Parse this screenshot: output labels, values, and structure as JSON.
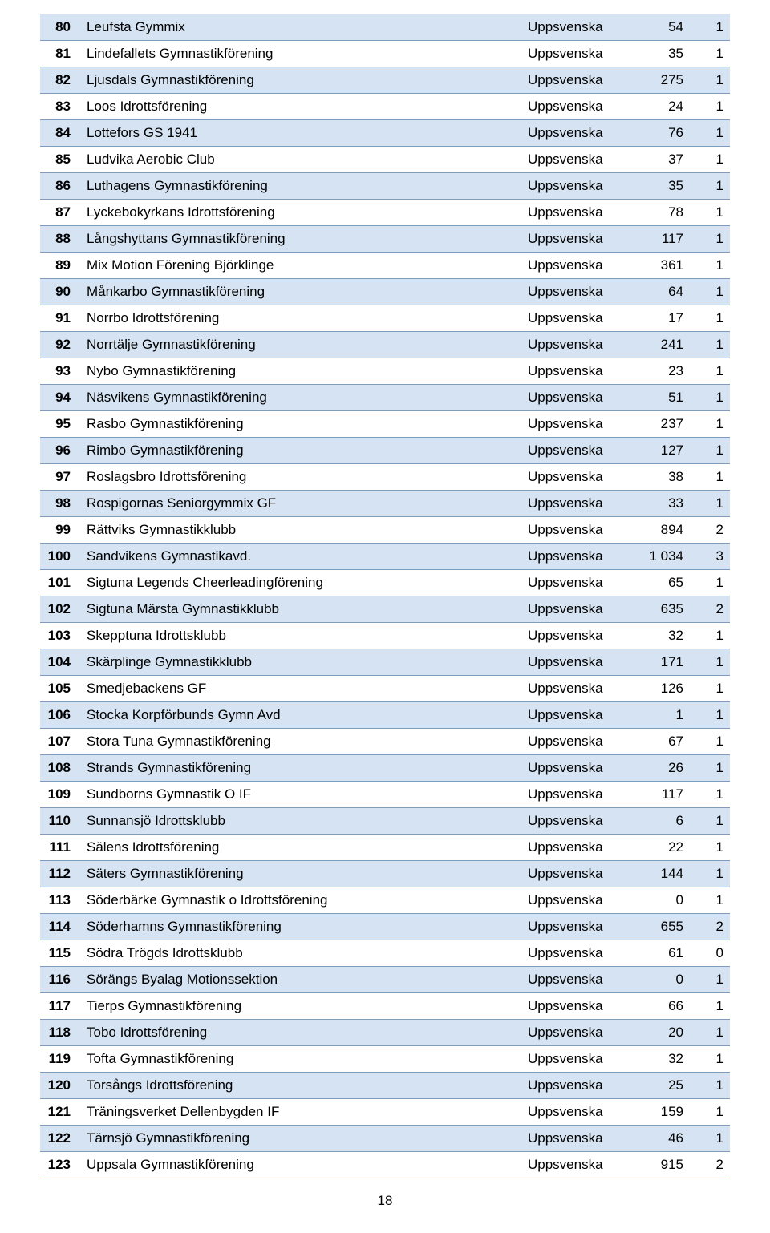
{
  "table": {
    "rows": [
      {
        "num": "80",
        "name": "Leufsta Gymmix",
        "region": "Uppsvenska",
        "v1": "54",
        "v2": "1",
        "shaded": true
      },
      {
        "num": "81",
        "name": "Lindefallets Gymnastikförening",
        "region": "Uppsvenska",
        "v1": "35",
        "v2": "1",
        "shaded": false
      },
      {
        "num": "82",
        "name": "Ljusdals Gymnastikförening",
        "region": "Uppsvenska",
        "v1": "275",
        "v2": "1",
        "shaded": true
      },
      {
        "num": "83",
        "name": "Loos Idrottsförening",
        "region": "Uppsvenska",
        "v1": "24",
        "v2": "1",
        "shaded": false
      },
      {
        "num": "84",
        "name": "Lottefors GS 1941",
        "region": "Uppsvenska",
        "v1": "76",
        "v2": "1",
        "shaded": true
      },
      {
        "num": "85",
        "name": "Ludvika Aerobic Club",
        "region": "Uppsvenska",
        "v1": "37",
        "v2": "1",
        "shaded": false
      },
      {
        "num": "86",
        "name": "Luthagens Gymnastikförening",
        "region": "Uppsvenska",
        "v1": "35",
        "v2": "1",
        "shaded": true
      },
      {
        "num": "87",
        "name": "Lyckebokyrkans Idrottsförening",
        "region": "Uppsvenska",
        "v1": "78",
        "v2": "1",
        "shaded": false
      },
      {
        "num": "88",
        "name": "Långshyttans Gymnastikförening",
        "region": "Uppsvenska",
        "v1": "117",
        "v2": "1",
        "shaded": true
      },
      {
        "num": "89",
        "name": "Mix Motion Förening Björklinge",
        "region": "Uppsvenska",
        "v1": "361",
        "v2": "1",
        "shaded": false
      },
      {
        "num": "90",
        "name": "Månkarbo Gymnastikförening",
        "region": "Uppsvenska",
        "v1": "64",
        "v2": "1",
        "shaded": true
      },
      {
        "num": "91",
        "name": "Norrbo Idrottsförening",
        "region": "Uppsvenska",
        "v1": "17",
        "v2": "1",
        "shaded": false
      },
      {
        "num": "92",
        "name": "Norrtälje Gymnastikförening",
        "region": "Uppsvenska",
        "v1": "241",
        "v2": "1",
        "shaded": true
      },
      {
        "num": "93",
        "name": "Nybo Gymnastikförening",
        "region": "Uppsvenska",
        "v1": "23",
        "v2": "1",
        "shaded": false
      },
      {
        "num": "94",
        "name": "Näsvikens Gymnastikförening",
        "region": "Uppsvenska",
        "v1": "51",
        "v2": "1",
        "shaded": true
      },
      {
        "num": "95",
        "name": "Rasbo Gymnastikförening",
        "region": "Uppsvenska",
        "v1": "237",
        "v2": "1",
        "shaded": false
      },
      {
        "num": "96",
        "name": "Rimbo Gymnastikförening",
        "region": "Uppsvenska",
        "v1": "127",
        "v2": "1",
        "shaded": true
      },
      {
        "num": "97",
        "name": "Roslagsbro Idrottsförening",
        "region": "Uppsvenska",
        "v1": "38",
        "v2": "1",
        "shaded": false
      },
      {
        "num": "98",
        "name": "Rospigornas Seniorgymmix GF",
        "region": "Uppsvenska",
        "v1": "33",
        "v2": "1",
        "shaded": true
      },
      {
        "num": "99",
        "name": "Rättviks Gymnastikklubb",
        "region": "Uppsvenska",
        "v1": "894",
        "v2": "2",
        "shaded": false
      },
      {
        "num": "100",
        "name": "Sandvikens Gymnastikavd.",
        "region": "Uppsvenska",
        "v1": "1 034",
        "v2": "3",
        "shaded": true
      },
      {
        "num": "101",
        "name": "Sigtuna Legends Cheerleadingförening",
        "region": "Uppsvenska",
        "v1": "65",
        "v2": "1",
        "shaded": false
      },
      {
        "num": "102",
        "name": "Sigtuna Märsta Gymnastikklubb",
        "region": "Uppsvenska",
        "v1": "635",
        "v2": "2",
        "shaded": true
      },
      {
        "num": "103",
        "name": "Skepptuna Idrottsklubb",
        "region": "Uppsvenska",
        "v1": "32",
        "v2": "1",
        "shaded": false
      },
      {
        "num": "104",
        "name": "Skärplinge Gymnastikklubb",
        "region": "Uppsvenska",
        "v1": "171",
        "v2": "1",
        "shaded": true
      },
      {
        "num": "105",
        "name": "Smedjebackens GF",
        "region": "Uppsvenska",
        "v1": "126",
        "v2": "1",
        "shaded": false
      },
      {
        "num": "106",
        "name": "Stocka Korpförbunds Gymn Avd",
        "region": "Uppsvenska",
        "v1": "1",
        "v2": "1",
        "shaded": true
      },
      {
        "num": "107",
        "name": "Stora Tuna Gymnastikförening",
        "region": "Uppsvenska",
        "v1": "67",
        "v2": "1",
        "shaded": false
      },
      {
        "num": "108",
        "name": "Strands Gymnastikförening",
        "region": "Uppsvenska",
        "v1": "26",
        "v2": "1",
        "shaded": true
      },
      {
        "num": "109",
        "name": "Sundborns Gymnastik O IF",
        "region": "Uppsvenska",
        "v1": "117",
        "v2": "1",
        "shaded": false
      },
      {
        "num": "110",
        "name": "Sunnansjö Idrottsklubb",
        "region": "Uppsvenska",
        "v1": "6",
        "v2": "1",
        "shaded": true
      },
      {
        "num": "111",
        "name": "Sälens Idrottsförening",
        "region": "Uppsvenska",
        "v1": "22",
        "v2": "1",
        "shaded": false
      },
      {
        "num": "112",
        "name": "Säters Gymnastikförening",
        "region": "Uppsvenska",
        "v1": "144",
        "v2": "1",
        "shaded": true
      },
      {
        "num": "113",
        "name": "Söderbärke Gymnastik o Idrottsförening",
        "region": "Uppsvenska",
        "v1": "0",
        "v2": "1",
        "shaded": false
      },
      {
        "num": "114",
        "name": "Söderhamns Gymnastikförening",
        "region": "Uppsvenska",
        "v1": "655",
        "v2": "2",
        "shaded": true
      },
      {
        "num": "115",
        "name": "Södra Trögds Idrottsklubb",
        "region": "Uppsvenska",
        "v1": "61",
        "v2": "0",
        "shaded": false
      },
      {
        "num": "116",
        "name": "Sörängs Byalag Motionssektion",
        "region": "Uppsvenska",
        "v1": "0",
        "v2": "1",
        "shaded": true
      },
      {
        "num": "117",
        "name": "Tierps Gymnastikförening",
        "region": "Uppsvenska",
        "v1": "66",
        "v2": "1",
        "shaded": false
      },
      {
        "num": "118",
        "name": "Tobo Idrottsförening",
        "region": "Uppsvenska",
        "v1": "20",
        "v2": "1",
        "shaded": true
      },
      {
        "num": "119",
        "name": "Tofta Gymnastikförening",
        "region": "Uppsvenska",
        "v1": "32",
        "v2": "1",
        "shaded": false
      },
      {
        "num": "120",
        "name": "Torsångs Idrottsförening",
        "region": "Uppsvenska",
        "v1": "25",
        "v2": "1",
        "shaded": true
      },
      {
        "num": "121",
        "name": "Träningsverket Dellenbygden IF",
        "region": "Uppsvenska",
        "v1": "159",
        "v2": "1",
        "shaded": false
      },
      {
        "num": "122",
        "name": "Tärnsjö Gymnastikförening",
        "region": "Uppsvenska",
        "v1": "46",
        "v2": "1",
        "shaded": true
      },
      {
        "num": "123",
        "name": "Uppsala Gymnastikförening",
        "region": "Uppsvenska",
        "v1": "915",
        "v2": "2",
        "shaded": false
      }
    ]
  },
  "page_number": "18",
  "style": {
    "shaded_row_color": "#d5e3f2",
    "border_color": "#7f9db9",
    "background_color": "#ffffff",
    "text_color": "#000000",
    "font_size": 17
  }
}
